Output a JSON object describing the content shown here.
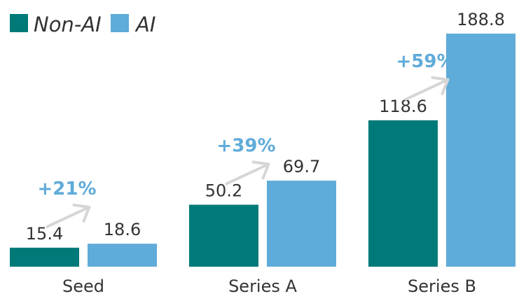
{
  "chart_data": {
    "type": "bar",
    "categories": [
      "Seed",
      "Series A",
      "Series B"
    ],
    "series": [
      {
        "name": "Non-AI",
        "color": "#007a78",
        "values": [
          15.4,
          50.2,
          118.6
        ]
      },
      {
        "name": "AI",
        "color": "#5fabd9",
        "values": [
          18.6,
          69.7,
          188.8
        ]
      }
    ],
    "value_labels": [
      [
        "15.4",
        "50.2",
        "118.6"
      ],
      [
        "18.6",
        "69.7",
        "188.8"
      ]
    ],
    "annotations": [
      "+21%",
      "+39%",
      "+59%"
    ],
    "annotation_color": "#5fabd9",
    "arrow_color": "#d6d6d6",
    "ylim": [
      0,
      200
    ],
    "title": "",
    "xlabel": "",
    "ylabel": "",
    "grid": false,
    "legend_position": "top-left"
  }
}
